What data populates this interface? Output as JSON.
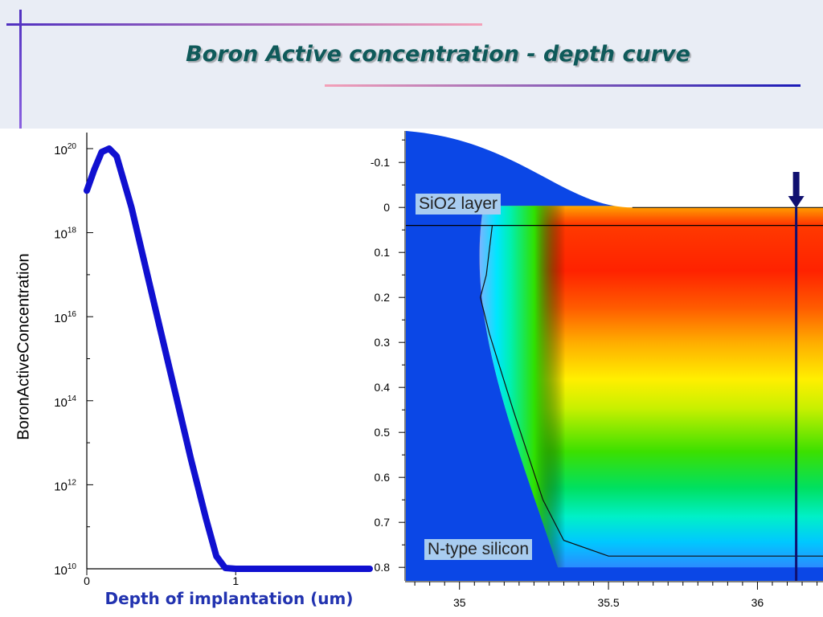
{
  "slide": {
    "title": "Boron Active concentration - depth curve",
    "caption": "Depth of implantation (um)"
  },
  "chart_data": [
    {
      "type": "line",
      "ylabel": "BoronActiveConcentration",
      "xlabel": "",
      "yscale": "log",
      "ylim": [
        10000000000.0,
        1e+20
      ],
      "xlim": [
        0,
        1.9
      ],
      "x_ticks": [
        "0",
        "1"
      ],
      "y_ticks": [
        {
          "base": "10",
          "exp": "20"
        },
        {
          "base": "10",
          "exp": "18"
        },
        {
          "base": "10",
          "exp": "16"
        },
        {
          "base": "10",
          "exp": "14"
        },
        {
          "base": "10",
          "exp": "12"
        },
        {
          "base": "10",
          "exp": "10"
        }
      ],
      "series": [
        {
          "color": "#1010d0",
          "x": [
            0,
            0.05,
            0.1,
            0.15,
            0.2,
            0.3,
            0.4,
            0.5,
            0.6,
            0.7,
            0.8,
            0.87,
            0.93,
            1.0,
            1.2,
            1.5,
            1.9
          ],
          "log10_y": [
            19.0,
            19.5,
            19.92,
            20.0,
            19.82,
            18.6,
            17.1,
            15.6,
            14.1,
            12.6,
            11.2,
            10.3,
            10.02,
            10.0,
            10.0,
            10.0,
            10.0
          ]
        }
      ]
    },
    {
      "type": "heatmap",
      "x_ticks": [
        "35",
        "35.5",
        "36"
      ],
      "y_ticks": [
        "-0.1",
        "0",
        "0.1",
        "0.2",
        "0.3",
        "0.4",
        "0.5",
        "0.6",
        "0.7",
        "0.8"
      ],
      "xlim": [
        34.82,
        36.22
      ],
      "ylim": [
        -0.17,
        0.83
      ],
      "annotations": [
        "SiO2 layer",
        "N-type silicon"
      ],
      "colors": {
        "background": "#0b47e6",
        "hot": "#ff2200",
        "cut_line": "#101070"
      },
      "cut_line_x": 36.13,
      "surface_y": 0.0,
      "oxide_interface_y": 0.04,
      "junction_depth": 0.775
    }
  ]
}
